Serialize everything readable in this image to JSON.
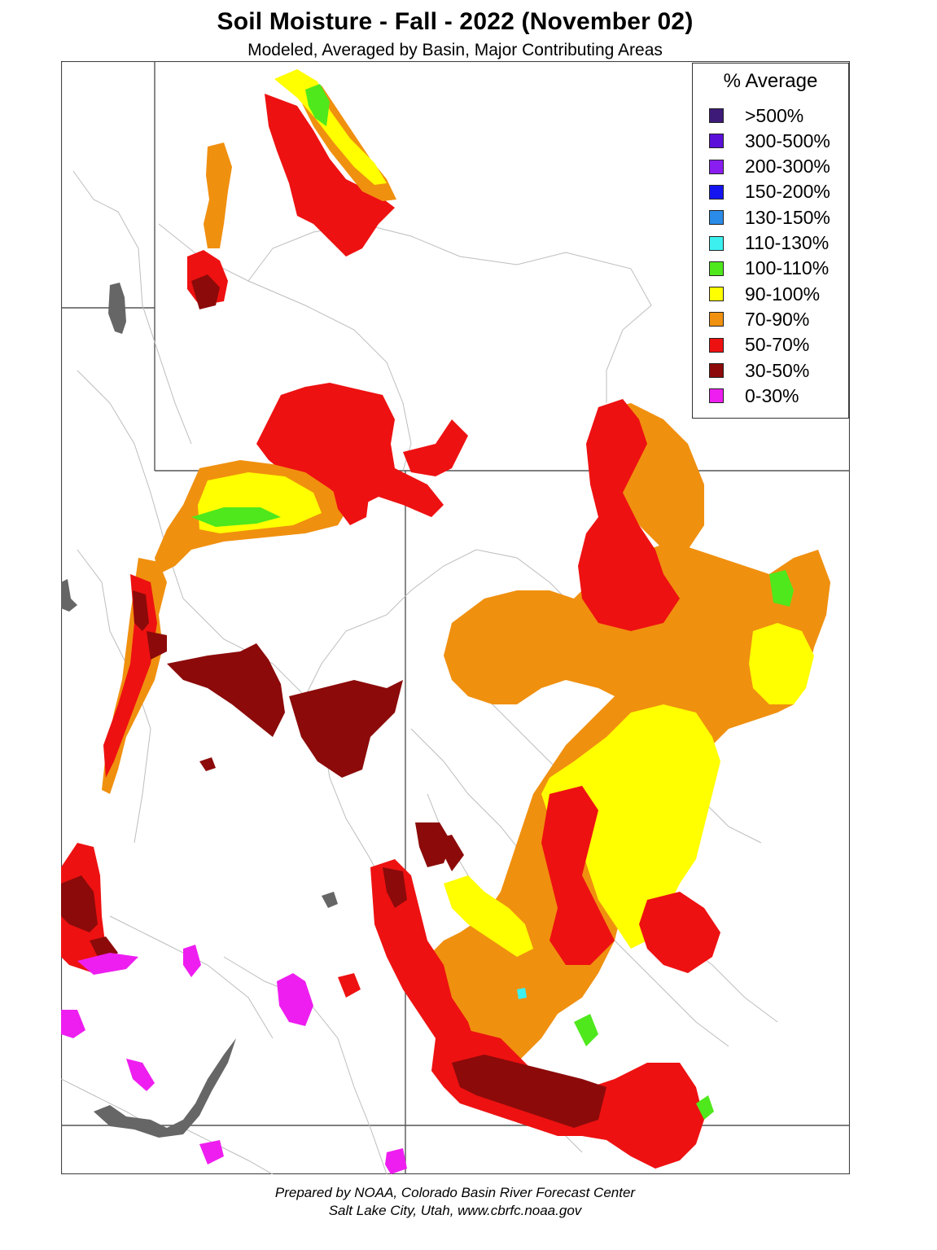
{
  "title": "Soil Moisture - Fall - 2022 (November 02)",
  "subtitle": "Modeled, Averaged by Basin, Major Contributing Areas",
  "legend": {
    "title": "% Average",
    "items": [
      {
        "label": ">500%",
        "color": "#3d1a78"
      },
      {
        "label": "300-500%",
        "color": "#5a10d8"
      },
      {
        "label": "200-300%",
        "color": "#8a1ef0"
      },
      {
        "label": "150-200%",
        "color": "#1414f0"
      },
      {
        "label": "130-150%",
        "color": "#2b8be8"
      },
      {
        "label": "110-130%",
        "color": "#3cf0f0"
      },
      {
        "label": "100-110%",
        "color": "#4fe81c"
      },
      {
        "label": "90-100%",
        "color": "#ffff00"
      },
      {
        "label": "70-90%",
        "color": "#f0900f"
      },
      {
        "label": "50-70%",
        "color": "#ee1111"
      },
      {
        "label": "30-50%",
        "color": "#8c0a0a"
      },
      {
        "label": "0-30%",
        "color": "#ee1ef0"
      }
    ]
  },
  "footer": {
    "line1": "Prepared by NOAA, Colorado Basin River Forecast Center",
    "line2": "Salt Lake City, Utah, www.cbrfc.noaa.gov"
  },
  "map_colors": {
    "border": "#444444",
    "rivers": "#bdbdbd",
    "lakes": "#666666"
  }
}
